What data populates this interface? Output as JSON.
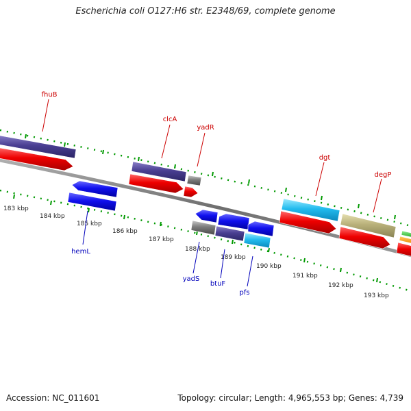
{
  "title": "Escherichia coli O127:H6 str. E2348/69, complete genome",
  "accession_text": "Accession: NC_011601",
  "topology_text": "Topology: circular; Length: 4,965,553 bp; Genes: 4,739",
  "colors": {
    "backbone": "#777777",
    "tick": "#009900",
    "top_label": "#cc0000",
    "bottom_label": "#0000bb",
    "kbp_label": "#222222"
  },
  "scale_labels": [
    "183 kbp",
    "184 kbp",
    "185 kbp",
    "186 kbp",
    "187 kbp",
    "188 kbp",
    "189 kbp",
    "190 kbp",
    "191 kbp",
    "192 kbp",
    "193 kbp"
  ],
  "top_strand_labels": [
    "fhuB",
    "clcA",
    "yadR",
    "dgt",
    "degP"
  ],
  "bottom_strand_labels": [
    "hemL",
    "yadS",
    "btuF",
    "pfs"
  ]
}
